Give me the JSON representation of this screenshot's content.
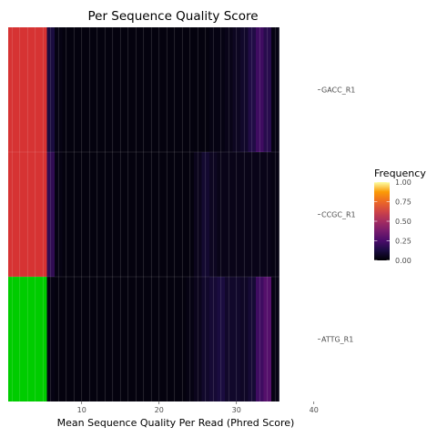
{
  "chart_data": {
    "type": "heatmap",
    "title": "Per Sequence Quality Score",
    "xlabel": "Mean Sequence Quality Per Read (Phred Score)",
    "ylabel": "",
    "x_ticks": [
      10,
      20,
      30,
      40
    ],
    "x_range": [
      0.5,
      40.5
    ],
    "rows": [
      "GACC_R1",
      "CCGC_R1",
      "ATTG_R1"
    ],
    "row_status_colors": [
      "#D63333",
      "#D63333",
      "#00CC00"
    ],
    "status_columns": 5,
    "legend": {
      "title": "Frequency",
      "ticks": [
        "1.00",
        "0.75",
        "0.50",
        "0.25",
        "0.00"
      ],
      "position": "right"
    },
    "colormap": "inferno",
    "values": [
      [
        0.12,
        0.03,
        0.02,
        0.02,
        0.02,
        0.02,
        0.02,
        0.02,
        0.02,
        0.02,
        0.02,
        0.02,
        0.02,
        0.02,
        0.02,
        0.02,
        0.02,
        0.02,
        0.02,
        0.02,
        0.02,
        0.03,
        0.03,
        0.04,
        0.06,
        0.08,
        0.14,
        0.22,
        0.16,
        0.03
      ],
      [
        0.18,
        0.03,
        0.02,
        0.02,
        0.02,
        0.02,
        0.02,
        0.02,
        0.02,
        0.02,
        0.02,
        0.02,
        0.02,
        0.02,
        0.02,
        0.02,
        0.02,
        0.02,
        0.02,
        0.05,
        0.09,
        0.06,
        0.04,
        0.04,
        0.04,
        0.04,
        0.04,
        0.04,
        0.04,
        0.03
      ],
      [
        0.03,
        0.02,
        0.02,
        0.02,
        0.02,
        0.02,
        0.02,
        0.02,
        0.02,
        0.02,
        0.02,
        0.02,
        0.02,
        0.02,
        0.02,
        0.02,
        0.02,
        0.02,
        0.03,
        0.05,
        0.08,
        0.1,
        0.12,
        0.08,
        0.08,
        0.07,
        0.1,
        0.22,
        0.28,
        0.03
      ]
    ]
  }
}
